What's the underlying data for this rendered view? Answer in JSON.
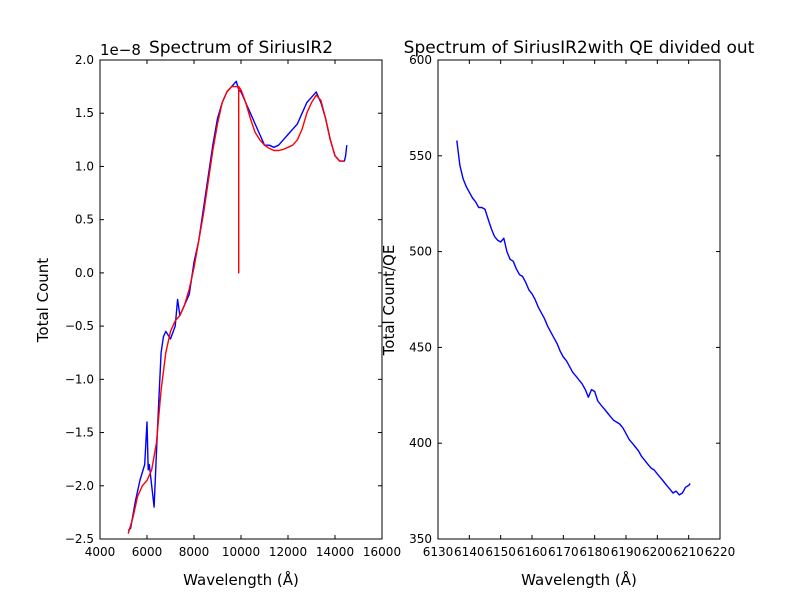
{
  "chart_data": [
    {
      "type": "line",
      "title": "Spectrum of SiriusIR2",
      "xlabel": "Wavelength (Å)",
      "ylabel": "Total Count",
      "offset_text": "1e−8",
      "xlim": [
        4000,
        16000
      ],
      "ylim": [
        -2.5,
        2.0
      ],
      "x_ticks": [
        "4000",
        "6000",
        "8000",
        "10000",
        "12000",
        "14000",
        "16000"
      ],
      "y_ticks": [
        "−2.5",
        "−2.0",
        "−1.5",
        "−1.0",
        "−0.5",
        "0.0",
        "0.5",
        "1.0",
        "1.5",
        "2.0"
      ],
      "grid": false,
      "series": [
        {
          "color": "#0000ff",
          "x": [
            5200,
            5300,
            5500,
            5700,
            5900,
            6000,
            6050,
            6100,
            6200,
            6300,
            6400,
            6500,
            6600,
            6700,
            6800,
            7000,
            7200,
            7300,
            7400,
            7600,
            7800,
            8000,
            8200,
            8400,
            8600,
            8800,
            9000,
            9200,
            9400,
            9600,
            9800,
            9900,
            10000,
            10200,
            10400,
            10600,
            10800,
            11000,
            11200,
            11400,
            11600,
            11800,
            12000,
            12200,
            12400,
            12600,
            12800,
            13000,
            13200,
            13400,
            13600,
            13800,
            14000,
            14200,
            14400,
            14450,
            14500
          ],
          "values": [
            -2.42,
            -2.4,
            -2.15,
            -1.95,
            -1.8,
            -1.4,
            -1.85,
            -1.8,
            -2.0,
            -2.2,
            -1.7,
            -1.2,
            -0.75,
            -0.6,
            -0.55,
            -0.62,
            -0.5,
            -0.25,
            -0.4,
            -0.3,
            -0.2,
            0.1,
            0.3,
            0.6,
            0.9,
            1.2,
            1.45,
            1.6,
            1.7,
            1.75,
            1.8,
            1.72,
            1.7,
            1.6,
            1.5,
            1.4,
            1.3,
            1.2,
            1.2,
            1.18,
            1.2,
            1.25,
            1.3,
            1.35,
            1.4,
            1.5,
            1.6,
            1.65,
            1.7,
            1.6,
            1.45,
            1.25,
            1.1,
            1.05,
            1.05,
            1.1,
            1.2
          ]
        },
        {
          "color": "#ff0000",
          "x": [
            5200,
            5400,
            5600,
            5800,
            6000,
            6200,
            6400,
            6600,
            6800,
            7000,
            7200,
            7400,
            7600,
            7800,
            8000,
            8200,
            8400,
            8600,
            8800,
            9000,
            9200,
            9400,
            9600,
            9800,
            9900,
            9901,
            9902,
            10000,
            10200,
            10400,
            10600,
            10800,
            11000,
            11200,
            11400,
            11600,
            11800,
            12000,
            12200,
            12400,
            12600,
            12800,
            13000,
            13200,
            13400,
            13600,
            13800,
            14000,
            14200,
            14400
          ],
          "values": [
            -2.45,
            -2.3,
            -2.1,
            -2.0,
            -1.95,
            -1.85,
            -1.6,
            -1.1,
            -0.75,
            -0.55,
            -0.45,
            -0.4,
            -0.3,
            -0.15,
            0.05,
            0.3,
            0.55,
            0.85,
            1.15,
            1.4,
            1.6,
            1.7,
            1.75,
            1.75,
            1.75,
            0.0,
            1.75,
            1.72,
            1.6,
            1.45,
            1.32,
            1.25,
            1.2,
            1.17,
            1.15,
            1.15,
            1.16,
            1.18,
            1.2,
            1.25,
            1.35,
            1.5,
            1.6,
            1.67,
            1.62,
            1.45,
            1.25,
            1.1,
            1.05,
            1.05
          ]
        }
      ]
    },
    {
      "type": "line",
      "title": "Spectrum of SiriusIR2with QE divided out",
      "xlabel": "Wavelength (Å)",
      "ylabel": "Total Count/QE",
      "xlim": [
        6130,
        6220
      ],
      "ylim": [
        350,
        600
      ],
      "x_ticks": [
        "6130",
        "6140",
        "6150",
        "6160",
        "6170",
        "6180",
        "6190",
        "6200",
        "6210",
        "6220"
      ],
      "y_ticks": [
        "350",
        "400",
        "450",
        "500",
        "550",
        "600"
      ],
      "grid": false,
      "series": [
        {
          "color": "#0000ff",
          "x": [
            6136,
            6137,
            6138,
            6139,
            6140,
            6141,
            6142,
            6143,
            6144,
            6145,
            6146,
            6147,
            6148,
            6149,
            6150,
            6151,
            6152,
            6153,
            6154,
            6155,
            6156,
            6157,
            6158,
            6159,
            6160,
            6161,
            6162,
            6163,
            6164,
            6165,
            6166,
            6167,
            6168,
            6169,
            6170,
            6171,
            6172,
            6173,
            6174,
            6175,
            6176,
            6177,
            6178,
            6179,
            6180,
            6181,
            6182,
            6183,
            6184,
            6185,
            6186,
            6187,
            6188,
            6189,
            6190,
            6191,
            6192,
            6193,
            6194,
            6195,
            6196,
            6197,
            6198,
            6199,
            6200,
            6201,
            6202,
            6203,
            6204,
            6205,
            6206,
            6207,
            6208,
            6209,
            6210,
            6210.5
          ],
          "values": [
            558,
            545,
            538,
            534,
            531,
            528,
            526,
            523,
            523,
            522,
            517,
            512,
            508,
            506,
            505,
            507,
            500,
            496,
            495,
            491,
            488,
            487,
            484,
            480,
            478,
            475,
            471,
            468,
            465,
            461,
            458,
            455,
            452,
            448,
            445,
            443,
            440,
            437,
            435,
            433,
            431,
            428,
            424,
            428,
            427,
            422,
            420,
            418,
            416,
            414,
            412,
            411,
            410,
            408,
            405,
            402,
            400,
            398,
            396,
            393,
            391,
            389,
            387,
            386,
            384,
            382,
            380,
            378,
            376,
            374,
            375,
            373,
            374,
            377,
            378,
            379
          ]
        }
      ]
    }
  ]
}
